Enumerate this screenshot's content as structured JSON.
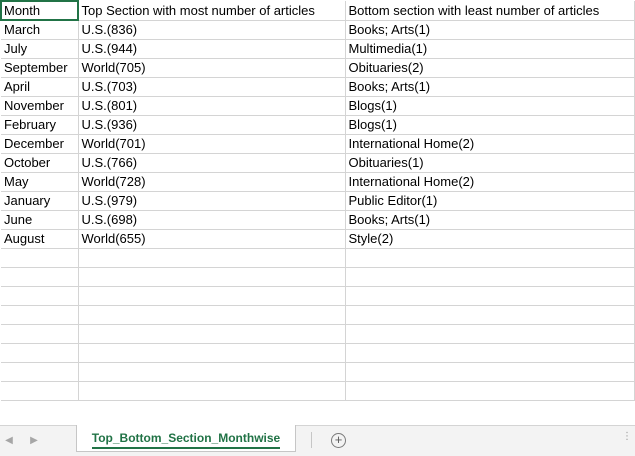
{
  "headers": {
    "month": "Month",
    "top": "Top Section with most number of articles",
    "bottom": "Bottom section with least number of articles"
  },
  "rows": [
    {
      "month": "March",
      "top": "U.S.(836)",
      "bottom": "Books; Arts(1)"
    },
    {
      "month": "July",
      "top": "U.S.(944)",
      "bottom": "Multimedia(1)"
    },
    {
      "month": "September",
      "top": "World(705)",
      "bottom": "Obituaries(2)"
    },
    {
      "month": "April",
      "top": "U.S.(703)",
      "bottom": "Books; Arts(1)"
    },
    {
      "month": "November",
      "top": "U.S.(801)",
      "bottom": "Blogs(1)"
    },
    {
      "month": "February",
      "top": "U.S.(936)",
      "bottom": "Blogs(1)"
    },
    {
      "month": "December",
      "top": "World(701)",
      "bottom": "International Home(2)"
    },
    {
      "month": "October",
      "top": "U.S.(766)",
      "bottom": "Obituaries(1)"
    },
    {
      "month": "May",
      "top": "World(728)",
      "bottom": "International Home(2)"
    },
    {
      "month": "January",
      "top": "U.S.(979)",
      "bottom": "Public Editor(1)"
    },
    {
      "month": "June",
      "top": "U.S.(698)",
      "bottom": "Books; Arts(1)"
    },
    {
      "month": "August",
      "top": "World(655)",
      "bottom": "Style(2)"
    }
  ],
  "tabs": {
    "active_sheet": "Top_Bottom_Section_Monthwise",
    "prev_icon": "◀",
    "next_icon": "▶",
    "add_icon": "+",
    "more_icon": "⋮"
  },
  "colors": {
    "accent": "#217346",
    "gridline": "#d4d4d4"
  }
}
